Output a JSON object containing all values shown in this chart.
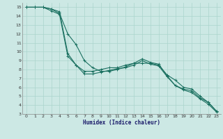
{
  "xlabel": "Humidex (Indice chaleur)",
  "bg_color": "#cce8e4",
  "grid_color": "#aad4cc",
  "line_color": "#1a7060",
  "xlim": [
    -0.5,
    23.5
  ],
  "ylim": [
    3,
    15.5
  ],
  "xticks": [
    0,
    1,
    2,
    3,
    4,
    5,
    6,
    7,
    8,
    9,
    10,
    11,
    12,
    13,
    14,
    15,
    16,
    17,
    18,
    19,
    20,
    21,
    22,
    23
  ],
  "yticks": [
    3,
    4,
    5,
    6,
    7,
    8,
    9,
    10,
    11,
    12,
    13,
    14,
    15
  ],
  "line1_x": [
    0,
    1,
    2,
    3,
    4,
    5,
    6,
    7,
    8,
    9,
    10,
    11,
    12,
    13,
    14,
    15,
    16,
    17,
    18,
    19,
    20,
    21,
    22,
    23
  ],
  "line1_y": [
    15,
    15,
    15,
    14.8,
    14.5,
    9.8,
    8.5,
    7.8,
    7.8,
    8.0,
    8.2,
    8.2,
    8.5,
    8.7,
    9.2,
    8.8,
    8.6,
    7.3,
    6.2,
    5.8,
    5.6,
    4.8,
    4.3,
    3.3
  ],
  "line2_x": [
    0,
    1,
    2,
    3,
    4,
    5,
    6,
    7,
    8,
    9,
    10,
    11,
    12,
    13,
    14,
    15,
    16,
    17,
    18,
    19,
    20,
    21,
    22,
    23
  ],
  "line2_y": [
    15,
    15,
    15,
    14.8,
    14.3,
    12.0,
    10.8,
    9.0,
    8.2,
    7.8,
    7.8,
    8.0,
    8.3,
    8.7,
    8.7,
    8.7,
    8.5,
    7.4,
    6.8,
    6.0,
    5.8,
    5.0,
    4.3,
    3.3
  ],
  "line3_x": [
    0,
    1,
    2,
    3,
    4,
    5,
    6,
    7,
    8,
    9,
    10,
    11,
    12,
    13,
    14,
    15,
    16,
    17,
    18,
    19,
    20,
    21,
    22,
    23
  ],
  "line3_y": [
    15,
    15,
    15,
    14.6,
    14.2,
    9.5,
    8.5,
    7.5,
    7.5,
    7.7,
    7.9,
    8.1,
    8.2,
    8.5,
    9.0,
    8.6,
    8.4,
    7.2,
    6.2,
    5.7,
    5.4,
    4.7,
    4.1,
    3.2
  ]
}
